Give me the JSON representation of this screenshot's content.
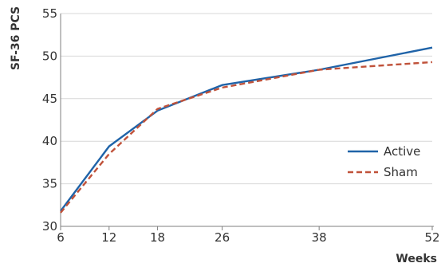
{
  "chart_data": {
    "type": "line",
    "xlabel": "Weeks",
    "ylabel": "SF-36 PCS",
    "xlim": [
      6,
      52
    ],
    "ylim": [
      30,
      55
    ],
    "xticks": [
      6,
      12,
      18,
      26,
      38,
      52
    ],
    "yticks": [
      30,
      35,
      40,
      45,
      50,
      55
    ],
    "grid": "horizontal",
    "legend_position": "right",
    "series": [
      {
        "name": "Active",
        "color": "#1f63a8",
        "style": "solid",
        "x": [
          6,
          12,
          18,
          26,
          38,
          52
        ],
        "values": [
          31.8,
          39.4,
          43.6,
          46.6,
          48.4,
          51.0
        ]
      },
      {
        "name": "Sham",
        "color": "#c0523a",
        "style": "dashed",
        "x": [
          6,
          12,
          18,
          26,
          38,
          52
        ],
        "values": [
          31.6,
          38.5,
          43.8,
          46.3,
          48.4,
          49.3
        ]
      }
    ]
  }
}
